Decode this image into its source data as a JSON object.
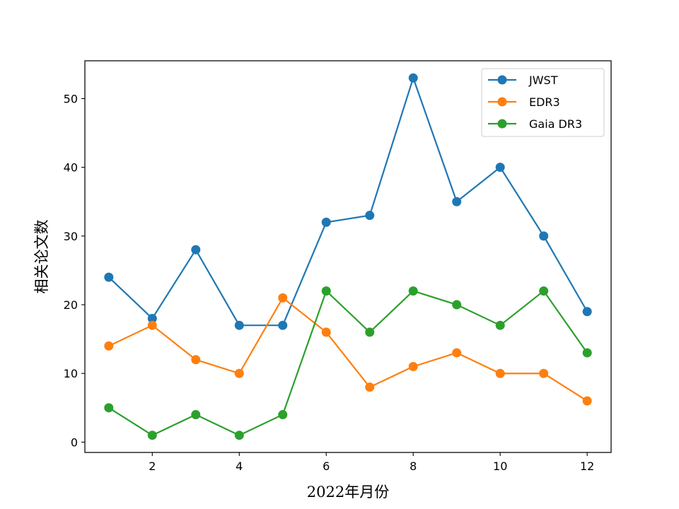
{
  "chart_data": {
    "type": "line",
    "title": "",
    "xlabel": "2022年月份",
    "ylabel": "相关论文数",
    "x": [
      1,
      2,
      3,
      4,
      5,
      6,
      7,
      8,
      9,
      10,
      11,
      12
    ],
    "xlim": [
      0.45,
      12.55
    ],
    "ylim": [
      -1.5,
      55.5
    ],
    "xticks": [
      2,
      4,
      6,
      8,
      10,
      12
    ],
    "yticks": [
      0,
      10,
      20,
      30,
      40,
      50
    ],
    "grid": false,
    "legend_position": "top-right",
    "series": [
      {
        "name": "JWST",
        "color": "#1f77b4",
        "marker": "circle",
        "values": [
          24,
          18,
          28,
          17,
          17,
          32,
          33,
          53,
          35,
          40,
          30,
          19
        ]
      },
      {
        "name": "EDR3",
        "color": "#ff7f0e",
        "marker": "circle",
        "values": [
          14,
          17,
          12,
          10,
          21,
          16,
          8,
          11,
          13,
          10,
          10,
          6
        ]
      },
      {
        "name": "Gaia DR3",
        "color": "#2ca02c",
        "marker": "circle",
        "values": [
          5,
          1,
          4,
          1,
          4,
          22,
          16,
          22,
          20,
          17,
          22,
          13
        ]
      }
    ]
  }
}
